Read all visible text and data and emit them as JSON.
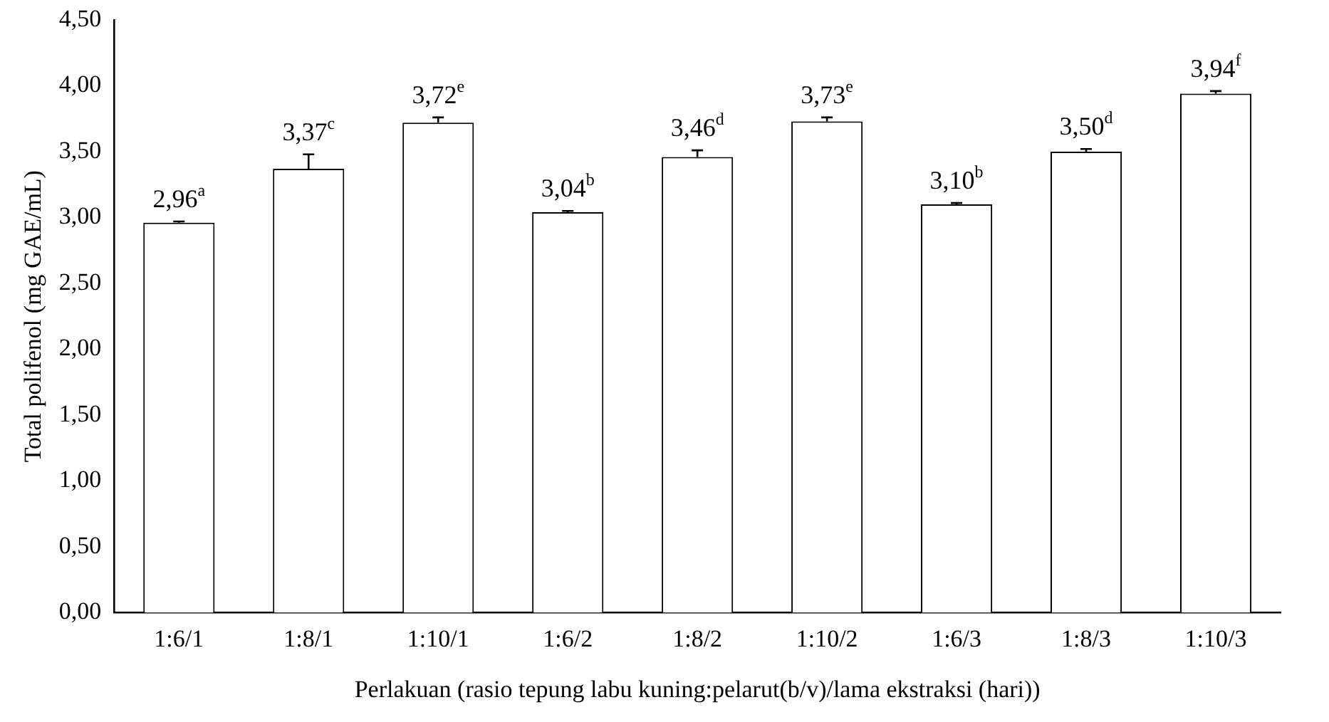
{
  "chart_data": {
    "type": "bar",
    "xlabel": "Perlakuan (rasio tepung labu kuning:pelarut(b/v)/lama ekstraksi (hari))",
    "ylabel": "Total polifenol (mg GAE/mL)",
    "categories": [
      "1:6/1",
      "1:8/1",
      "1:10/1",
      "1:6/2",
      "1:8/2",
      "1:10/2",
      "1:6/3",
      "1:8/3",
      "1:10/3"
    ],
    "values": [
      2.96,
      3.37,
      3.72,
      3.04,
      3.46,
      3.73,
      3.1,
      3.5,
      3.94
    ],
    "errors": [
      0.01,
      0.11,
      0.04,
      0.01,
      0.05,
      0.03,
      0.01,
      0.02,
      0.02
    ],
    "value_labels": [
      "2,96$^{a}$",
      "3,37$^{c}$",
      "3,72$^{e}$",
      "3,04$^{b}$",
      "3,46$^{d}$",
      "3,73$^{e}$",
      "3,10$^{b}$",
      "3,50$^{d}$",
      "3,94$^{f}$"
    ],
    "color": "#ffffff",
    "ylim": [
      0,
      4.5
    ],
    "yticks": [
      {
        "value": 0,
        "label": "0,00"
      },
      {
        "value": 0.5,
        "label": "0,50"
      },
      {
        "value": 1,
        "label": "1,00"
      },
      {
        "value": 1.5,
        "label": "1,50"
      },
      {
        "value": 2,
        "label": "2,00"
      },
      {
        "value": 2.5,
        "label": "2,50"
      },
      {
        "value": 3,
        "label": "3,00"
      },
      {
        "value": 3.5,
        "label": "3,50"
      },
      {
        "value": 4,
        "label": "4,00"
      },
      {
        "value": 4.5,
        "label": "4,50"
      }
    ],
    "grid": false,
    "legend": false
  }
}
